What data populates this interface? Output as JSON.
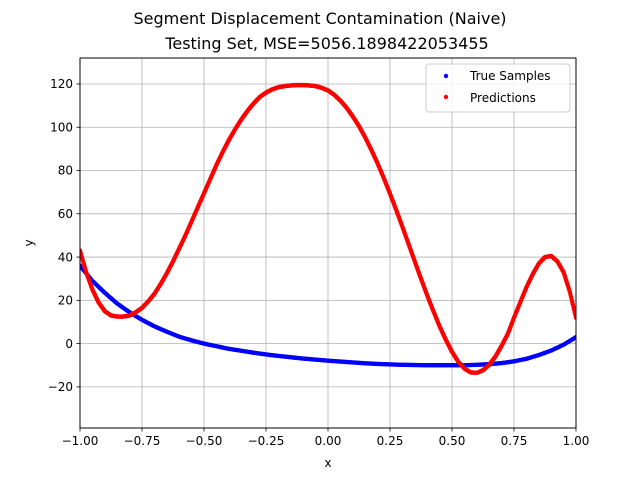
{
  "chart_data": {
    "type": "scatter",
    "title": "Segment Displacement Contamination (Naive)",
    "subtitle": "Testing Set, MSE=5056.1898422053455",
    "xlabel": "x",
    "ylabel": "y",
    "xlim": [
      -1.0,
      1.0
    ],
    "ylim": [
      -39,
      132
    ],
    "grid": true,
    "legend_position": "top-right",
    "x_ticks": [
      {
        "value": -1.0,
        "label": "−1.00"
      },
      {
        "value": -0.75,
        "label": "−0.75"
      },
      {
        "value": -0.5,
        "label": "−0.50"
      },
      {
        "value": -0.25,
        "label": "−0.25"
      },
      {
        "value": 0.0,
        "label": "0.00"
      },
      {
        "value": 0.25,
        "label": "0.25"
      },
      {
        "value": 0.5,
        "label": "0.50"
      },
      {
        "value": 0.75,
        "label": "0.75"
      },
      {
        "value": 1.0,
        "label": "1.00"
      }
    ],
    "y_ticks": [
      {
        "value": -20,
        "label": "−20"
      },
      {
        "value": 0,
        "label": "0"
      },
      {
        "value": 20,
        "label": "20"
      },
      {
        "value": 40,
        "label": "40"
      },
      {
        "value": 60,
        "label": "60"
      },
      {
        "value": 80,
        "label": "80"
      },
      {
        "value": 100,
        "label": "100"
      },
      {
        "value": 120,
        "label": "120"
      }
    ],
    "series": [
      {
        "name": "True Samples",
        "color": "#0000ff",
        "x": [
          -1.0,
          -0.95,
          -0.9,
          -0.85,
          -0.8,
          -0.75,
          -0.7,
          -0.65,
          -0.6,
          -0.55,
          -0.5,
          -0.45,
          -0.4,
          -0.35,
          -0.3,
          -0.25,
          -0.2,
          -0.15,
          -0.1,
          -0.05,
          0.0,
          0.05,
          0.1,
          0.15,
          0.2,
          0.25,
          0.3,
          0.35,
          0.4,
          0.45,
          0.5,
          0.55,
          0.6,
          0.65,
          0.7,
          0.75,
          0.8,
          0.85,
          0.9,
          0.95,
          1.0
        ],
        "y": [
          36,
          29,
          23.5,
          18.5,
          14.5,
          11,
          8,
          5.5,
          3.2,
          1.5,
          0,
          -1.2,
          -2.4,
          -3.3,
          -4.2,
          -5,
          -5.7,
          -6.3,
          -6.9,
          -7.4,
          -7.9,
          -8.3,
          -8.7,
          -9.1,
          -9.4,
          -9.6,
          -9.8,
          -9.9,
          -10,
          -10,
          -10,
          -10,
          -9.8,
          -9.5,
          -9,
          -8.2,
          -7,
          -5.3,
          -3.2,
          -0.5,
          3
        ]
      },
      {
        "name": "Predictions",
        "color": "#ff0000",
        "x": [
          -1.0,
          -0.975,
          -0.95,
          -0.925,
          -0.9,
          -0.875,
          -0.85,
          -0.825,
          -0.8,
          -0.775,
          -0.75,
          -0.725,
          -0.7,
          -0.675,
          -0.65,
          -0.625,
          -0.6,
          -0.575,
          -0.55,
          -0.525,
          -0.5,
          -0.475,
          -0.45,
          -0.425,
          -0.4,
          -0.375,
          -0.35,
          -0.325,
          -0.3,
          -0.275,
          -0.25,
          -0.225,
          -0.2,
          -0.175,
          -0.15,
          -0.125,
          -0.1,
          -0.075,
          -0.05,
          -0.025,
          0.0,
          0.025,
          0.05,
          0.075,
          0.1,
          0.125,
          0.15,
          0.175,
          0.2,
          0.225,
          0.25,
          0.275,
          0.3,
          0.325,
          0.35,
          0.375,
          0.4,
          0.425,
          0.45,
          0.475,
          0.5,
          0.525,
          0.55,
          0.575,
          0.6,
          0.625,
          0.65,
          0.675,
          0.7,
          0.725,
          0.75,
          0.775,
          0.8,
          0.825,
          0.85,
          0.875,
          0.9,
          0.925,
          0.95,
          0.975,
          1.0
        ],
        "y": [
          43,
          33,
          25,
          19,
          15,
          13,
          12.5,
          12.5,
          13,
          14.5,
          16.5,
          19.5,
          23,
          27.5,
          32.5,
          38,
          44,
          50,
          56.5,
          63,
          69.5,
          76,
          82.5,
          88.5,
          94,
          99,
          103.5,
          107.5,
          111,
          114,
          116,
          117.5,
          118.5,
          119,
          119.3,
          119.5,
          119.5,
          119.3,
          119,
          118.2,
          117,
          115,
          112.3,
          109,
          105,
          100.5,
          95.3,
          89.5,
          83.3,
          76.5,
          69.3,
          61.8,
          54,
          46,
          38,
          30,
          22.3,
          15,
          8,
          1.8,
          -3.8,
          -8.3,
          -11.5,
          -13.3,
          -13.5,
          -12.3,
          -9.8,
          -6,
          -1,
          4.5,
          12,
          19,
          26,
          32,
          37,
          40,
          40.5,
          38,
          33,
          24,
          12
        ]
      }
    ]
  }
}
